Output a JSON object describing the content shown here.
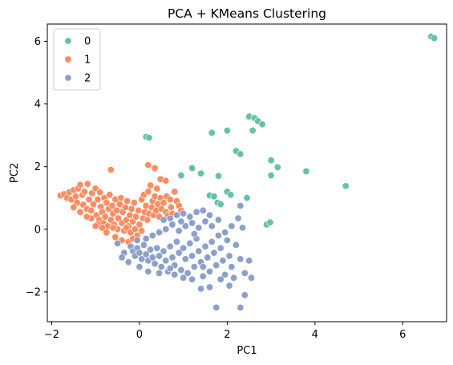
{
  "chart_data": {
    "type": "scatter",
    "title": "PCA + KMeans Clustering",
    "xlabel": "PC1",
    "ylabel": "PC2",
    "xlim": [
      -2.1,
      7.0
    ],
    "ylim": [
      -2.95,
      6.55
    ],
    "xticks": [
      -2,
      0,
      2,
      4,
      6
    ],
    "yticks": [
      -2,
      0,
      2,
      4,
      6
    ],
    "grid": false,
    "legend_position": "top-left",
    "series": [
      {
        "name": "0",
        "color": "#66c2a5",
        "points": [
          [
            6.65,
            6.15
          ],
          [
            6.72,
            6.1
          ],
          [
            2.5,
            3.6
          ],
          [
            2.62,
            3.55
          ],
          [
            2.7,
            3.45
          ],
          [
            2.8,
            3.35
          ],
          [
            2.58,
            3.15
          ],
          [
            1.65,
            3.08
          ],
          [
            2.0,
            3.15
          ],
          [
            2.2,
            2.5
          ],
          [
            2.3,
            2.4
          ],
          [
            0.15,
            2.95
          ],
          [
            0.22,
            2.92
          ],
          [
            1.8,
            1.7
          ],
          [
            1.4,
            1.78
          ],
          [
            1.2,
            1.95
          ],
          [
            0.95,
            1.72
          ],
          [
            2.0,
            1.2
          ],
          [
            2.08,
            1.1
          ],
          [
            1.6,
            1.08
          ],
          [
            1.7,
            1.05
          ],
          [
            1.78,
            0.85
          ],
          [
            1.85,
            0.8
          ],
          [
            2.45,
            1.0
          ],
          [
            3.0,
            2.2
          ],
          [
            3.15,
            1.98
          ],
          [
            3.0,
            1.72
          ],
          [
            3.8,
            1.85
          ],
          [
            4.7,
            1.38
          ],
          [
            2.9,
            0.15
          ],
          [
            2.98,
            0.22
          ]
        ]
      },
      {
        "name": "1",
        "color": "#fc8d62",
        "points": [
          [
            -1.8,
            1.08
          ],
          [
            -1.72,
            1.12
          ],
          [
            -1.65,
            1.0
          ],
          [
            -1.6,
            1.18
          ],
          [
            -1.55,
            0.95
          ],
          [
            -1.5,
            1.25
          ],
          [
            -1.45,
            1.05
          ],
          [
            -1.42,
            0.85
          ],
          [
            -1.4,
            1.3
          ],
          [
            -1.35,
            1.42
          ],
          [
            -1.3,
            1.1
          ],
          [
            -1.28,
            0.78
          ],
          [
            -1.25,
            1.2
          ],
          [
            -1.2,
            0.65
          ],
          [
            -1.18,
            1.45
          ],
          [
            -1.15,
            0.95
          ],
          [
            -1.1,
            0.6
          ],
          [
            -1.08,
            1.15
          ],
          [
            -1.05,
            0.8
          ],
          [
            -1.0,
            1.3
          ],
          [
            -0.98,
            0.45
          ],
          [
            -0.95,
            0.95
          ],
          [
            -0.92,
            0.3
          ],
          [
            -0.9,
            1.18
          ],
          [
            -0.88,
            0.72
          ],
          [
            -0.85,
            0.55
          ],
          [
            -0.82,
            0.2
          ],
          [
            -0.8,
            1.0
          ],
          [
            -0.78,
            0.4
          ],
          [
            -0.75,
            0.85
          ],
          [
            -0.72,
            0.1
          ],
          [
            -0.7,
            0.65
          ],
          [
            -0.68,
            1.1
          ],
          [
            -0.65,
            0.3
          ],
          [
            -0.62,
            0.75
          ],
          [
            -0.6,
            0.5
          ],
          [
            -0.58,
            0.15
          ],
          [
            -0.55,
            0.95
          ],
          [
            -0.52,
            0.6
          ],
          [
            -0.5,
            0.0
          ],
          [
            -0.48,
            0.35
          ],
          [
            -0.45,
            0.8
          ],
          [
            -0.42,
            1.0
          ],
          [
            -0.4,
            0.2
          ],
          [
            -0.38,
            0.55
          ],
          [
            -0.35,
            -0.05
          ],
          [
            -0.32,
            0.7
          ],
          [
            -0.3,
            0.3
          ],
          [
            -0.28,
            0.9
          ],
          [
            -0.25,
            0.1
          ],
          [
            -0.22,
            0.45
          ],
          [
            -0.2,
            -0.1
          ],
          [
            -0.18,
            0.65
          ],
          [
            -0.15,
            0.25
          ],
          [
            -0.12,
            0.85
          ],
          [
            -0.1,
            0.0
          ],
          [
            -0.08,
            0.4
          ],
          [
            -0.05,
            -0.2
          ],
          [
            -0.02,
            0.6
          ],
          [
            0.0,
            0.15
          ],
          [
            0.05,
            0.95
          ],
          [
            0.08,
            0.35
          ],
          [
            0.1,
            1.1
          ],
          [
            0.12,
            0.55
          ],
          [
            0.15,
            0.75
          ],
          [
            0.18,
            0.3
          ],
          [
            0.2,
            1.2
          ],
          [
            0.22,
            0.5
          ],
          [
            0.25,
            1.4
          ],
          [
            0.28,
            0.7
          ],
          [
            0.3,
            0.9
          ],
          [
            0.32,
            0.45
          ],
          [
            0.35,
            1.05
          ],
          [
            0.38,
            0.6
          ],
          [
            0.4,
            1.3
          ],
          [
            0.42,
            0.8
          ],
          [
            0.45,
            0.4
          ],
          [
            0.48,
            1.0
          ],
          [
            0.5,
            0.65
          ],
          [
            0.55,
            0.85
          ],
          [
            0.6,
            0.55
          ],
          [
            0.62,
            1.05
          ],
          [
            0.65,
            0.45
          ],
          [
            0.7,
            0.95
          ],
          [
            0.72,
            0.7
          ],
          [
            0.75,
            0.5
          ],
          [
            0.8,
            1.2
          ],
          [
            0.85,
            0.9
          ],
          [
            0.9,
            0.75
          ],
          [
            0.95,
            0.6
          ],
          [
            -0.65,
            1.9
          ],
          [
            0.2,
            2.05
          ],
          [
            0.35,
            1.95
          ],
          [
            0.48,
            1.6
          ],
          [
            0.6,
            1.55
          ],
          [
            -1.5,
            0.7
          ],
          [
            -1.35,
            0.55
          ],
          [
            -1.1,
            0.35
          ],
          [
            -0.95,
            0.15
          ],
          [
            -0.75,
            -0.1
          ],
          [
            -0.55,
            -0.25
          ],
          [
            -0.4,
            -0.35
          ],
          [
            -0.25,
            -0.4
          ],
          [
            -0.6,
            0.05
          ],
          [
            -0.85,
            0.05
          ],
          [
            -1.2,
            0.4
          ],
          [
            -1.0,
            0.1
          ],
          [
            -0.3,
            0.05
          ],
          [
            -0.15,
            -0.3
          ],
          [
            0.05,
            -0.05
          ]
        ]
      },
      {
        "name": "2",
        "color": "#8da0cb",
        "points": [
          [
            -0.2,
            -0.55
          ],
          [
            -0.15,
            -0.7
          ],
          [
            -0.1,
            -0.85
          ],
          [
            -0.05,
            -0.6
          ],
          [
            0.0,
            -0.75
          ],
          [
            0.05,
            -0.95
          ],
          [
            0.1,
            -0.5
          ],
          [
            0.15,
            -0.8
          ],
          [
            0.2,
            -1.0
          ],
          [
            0.25,
            -0.65
          ],
          [
            0.3,
            -0.9
          ],
          [
            0.35,
            -1.1
          ],
          [
            0.4,
            -0.6
          ],
          [
            0.45,
            -0.85
          ],
          [
            0.5,
            -1.2
          ],
          [
            0.55,
            -0.7
          ],
          [
            0.6,
            -1.0
          ],
          [
            0.65,
            -1.35
          ],
          [
            0.7,
            -0.55
          ],
          [
            0.75,
            -0.9
          ],
          [
            0.8,
            -1.15
          ],
          [
            0.85,
            -0.4
          ],
          [
            0.9,
            -0.75
          ],
          [
            0.95,
            -1.3
          ],
          [
            1.0,
            -0.6
          ],
          [
            1.05,
            -0.95
          ],
          [
            1.1,
            -1.4
          ],
          [
            1.15,
            -0.45
          ],
          [
            1.2,
            -0.85
          ],
          [
            1.25,
            -1.2
          ],
          [
            1.3,
            -0.3
          ],
          [
            1.35,
            -0.7
          ],
          [
            1.4,
            -1.05
          ],
          [
            1.45,
            -1.5
          ],
          [
            1.5,
            -0.55
          ],
          [
            1.55,
            -0.9
          ],
          [
            1.6,
            -1.35
          ],
          [
            1.65,
            -0.4
          ],
          [
            1.7,
            -0.75
          ],
          [
            1.75,
            -1.15
          ],
          [
            1.8,
            -0.2
          ],
          [
            1.85,
            -0.6
          ],
          [
            1.9,
            -1.0
          ],
          [
            1.95,
            -1.45
          ],
          [
            2.0,
            -0.35
          ],
          [
            2.05,
            -0.85
          ],
          [
            2.1,
            -1.2
          ],
          [
            2.2,
            -0.5
          ],
          [
            2.3,
            -0.95
          ],
          [
            2.4,
            -1.4
          ],
          [
            0.3,
            -0.2
          ],
          [
            0.45,
            -0.1
          ],
          [
            0.6,
            0.0
          ],
          [
            0.75,
            0.15
          ],
          [
            0.9,
            -0.05
          ],
          [
            1.05,
            0.1
          ],
          [
            1.2,
            0.2
          ],
          [
            1.35,
            0.05
          ],
          [
            1.5,
            0.25
          ],
          [
            1.65,
            0.1
          ],
          [
            1.8,
            0.3
          ],
          [
            1.95,
            -0.1
          ],
          [
            2.1,
            0.1
          ],
          [
            2.25,
            0.35
          ],
          [
            2.35,
            0.05
          ],
          [
            0.7,
            0.35
          ],
          [
            0.85,
            0.45
          ],
          [
            1.0,
            0.5
          ],
          [
            1.15,
            0.4
          ],
          [
            1.3,
            0.55
          ],
          [
            1.45,
            0.6
          ],
          [
            1.6,
            0.45
          ],
          [
            0.95,
            0.25
          ],
          [
            1.25,
            -0.15
          ],
          [
            0.55,
            0.3
          ],
          [
            2.3,
            0.75
          ],
          [
            2.5,
            -1.0
          ],
          [
            2.55,
            -1.55
          ],
          [
            2.4,
            -2.1
          ],
          [
            1.75,
            -2.5
          ],
          [
            2.3,
            -2.5
          ],
          [
            1.6,
            -1.85
          ],
          [
            1.4,
            -1.9
          ],
          [
            1.2,
            -1.6
          ],
          [
            1.0,
            -1.55
          ],
          [
            0.8,
            -1.45
          ],
          [
            1.85,
            -1.6
          ],
          [
            2.15,
            -1.55
          ],
          [
            2.05,
            -1.8
          ],
          [
            -0.5,
            -0.45
          ],
          [
            -0.35,
            -0.75
          ],
          [
            -0.4,
            -0.9
          ],
          [
            -0.25,
            -1.05
          ],
          [
            0.0,
            -1.2
          ],
          [
            0.2,
            -1.35
          ],
          [
            0.45,
            -1.4
          ],
          [
            0.7,
            -1.25
          ],
          [
            0.15,
            -0.3
          ],
          [
            -0.05,
            -0.35
          ],
          [
            1.45,
            -1.2
          ]
        ]
      }
    ]
  }
}
